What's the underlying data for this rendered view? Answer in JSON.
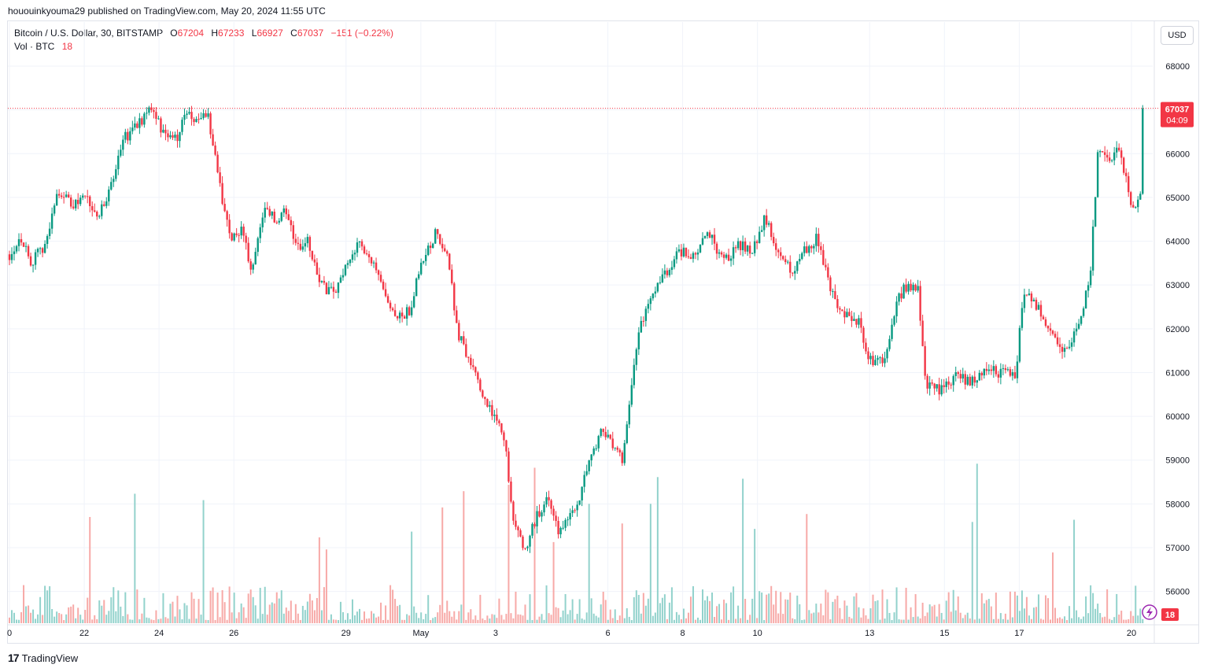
{
  "publish_line": "hououinkyouma29 published on TradingView.com, May 20, 2024 11:55 UTC",
  "legend": {
    "symbol": "Bitcoin / U.S. Dollar, 30, BITSTAMP",
    "open_label": "O",
    "open": "67204",
    "high_label": "H",
    "high": "67233",
    "low_label": "L",
    "low": "66927",
    "close_label": "C",
    "close": "67037",
    "change": "−151 (−0.22%)",
    "vol_label": "Vol · BTC",
    "vol_value": "18"
  },
  "currency_button": "USD",
  "last_price_label": {
    "price": "67037",
    "countdown": "04:09"
  },
  "volume_badge": "18",
  "footer_brand": "TradingView",
  "colors": {
    "up": "#089981",
    "down": "#f23645",
    "up_vol": "#92d2cc",
    "down_vol": "#f7a9a7",
    "grid": "#f0f3fa",
    "axis_text": "#131722"
  },
  "chart_data": {
    "type": "candlestick",
    "symbol": "BTCUSD",
    "interval_minutes": 30,
    "exchange": "BITSTAMP",
    "y_range": [
      55400,
      68500
    ],
    "y_ticks": [
      56000,
      57000,
      58000,
      59000,
      60000,
      61000,
      62000,
      63000,
      64000,
      65000,
      66000,
      67000,
      68000
    ],
    "x_ticks": [
      "0",
      "22",
      "24",
      "26",
      "29",
      "May",
      "3",
      "6",
      "8",
      "10",
      "13",
      "15",
      "17",
      "20"
    ],
    "x_range_days": [
      0,
      30.3
    ],
    "x_tick_days": [
      0,
      2,
      4,
      6,
      9,
      11,
      13,
      16,
      18,
      20,
      23,
      25,
      27,
      30
    ],
    "last_price": 67037,
    "anchor_path": [
      [
        0,
        63700
      ],
      [
        0.3,
        64100
      ],
      [
        0.6,
        63500
      ],
      [
        1,
        64000
      ],
      [
        1.3,
        65200
      ],
      [
        1.7,
        64800
      ],
      [
        2,
        65100
      ],
      [
        2.3,
        64500
      ],
      [
        2.6,
        64900
      ],
      [
        3,
        66300
      ],
      [
        3.4,
        66600
      ],
      [
        3.8,
        67100
      ],
      [
        4.1,
        66500
      ],
      [
        4.5,
        66300
      ],
      [
        4.7,
        67000
      ],
      [
        5,
        66700
      ],
      [
        5.3,
        66900
      ],
      [
        5.6,
        65400
      ],
      [
        5.9,
        64000
      ],
      [
        6.2,
        64300
      ],
      [
        6.5,
        63300
      ],
      [
        6.8,
        64800
      ],
      [
        7.1,
        64500
      ],
      [
        7.4,
        64700
      ],
      [
        7.7,
        63800
      ],
      [
        8,
        64000
      ],
      [
        8.3,
        63000
      ],
      [
        8.7,
        62800
      ],
      [
        9,
        63500
      ],
      [
        9.4,
        64000
      ],
      [
        9.7,
        63500
      ],
      [
        10,
        62800
      ],
      [
        10.3,
        62200
      ],
      [
        10.7,
        62400
      ],
      [
        11,
        63500
      ],
      [
        11.4,
        64200
      ],
      [
        11.7,
        63700
      ],
      [
        12,
        61900
      ],
      [
        12.4,
        61000
      ],
      [
        12.8,
        60200
      ],
      [
        13.2,
        59700
      ],
      [
        13.5,
        57500
      ],
      [
        13.8,
        57000
      ],
      [
        14.1,
        57700
      ],
      [
        14.4,
        58100
      ],
      [
        14.7,
        57300
      ],
      [
        15.1,
        57800
      ],
      [
        15.5,
        58900
      ],
      [
        15.8,
        59600
      ],
      [
        16.1,
        59400
      ],
      [
        16.4,
        59000
      ],
      [
        16.8,
        61900
      ],
      [
        17.1,
        62600
      ],
      [
        17.5,
        63200
      ],
      [
        17.9,
        63800
      ],
      [
        18.3,
        63600
      ],
      [
        18.7,
        64200
      ],
      [
        19.1,
        63500
      ],
      [
        19.5,
        63900
      ],
      [
        19.9,
        63800
      ],
      [
        20.2,
        64600
      ],
      [
        20.5,
        63900
      ],
      [
        20.9,
        63300
      ],
      [
        21.2,
        63700
      ],
      [
        21.6,
        64100
      ],
      [
        21.9,
        63000
      ],
      [
        22.3,
        62300
      ],
      [
        22.7,
        62200
      ],
      [
        23,
        61300
      ],
      [
        23.4,
        61200
      ],
      [
        23.7,
        62600
      ],
      [
        24,
        63000
      ],
      [
        24.3,
        62900
      ],
      [
        24.5,
        60700
      ],
      [
        24.9,
        60600
      ],
      [
        25.3,
        60900
      ],
      [
        25.7,
        60800
      ],
      [
        26.1,
        61100
      ],
      [
        26.5,
        61000
      ],
      [
        26.9,
        60900
      ],
      [
        27.1,
        62800
      ],
      [
        27.5,
        62500
      ],
      [
        27.8,
        61900
      ],
      [
        28.2,
        61500
      ],
      [
        28.6,
        62100
      ],
      [
        28.9,
        63300
      ],
      [
        29.1,
        66000
      ],
      [
        29.4,
        65900
      ],
      [
        29.7,
        66100
      ],
      [
        30.0,
        64700
      ],
      [
        30.3,
        65200
      ]
    ]
  }
}
